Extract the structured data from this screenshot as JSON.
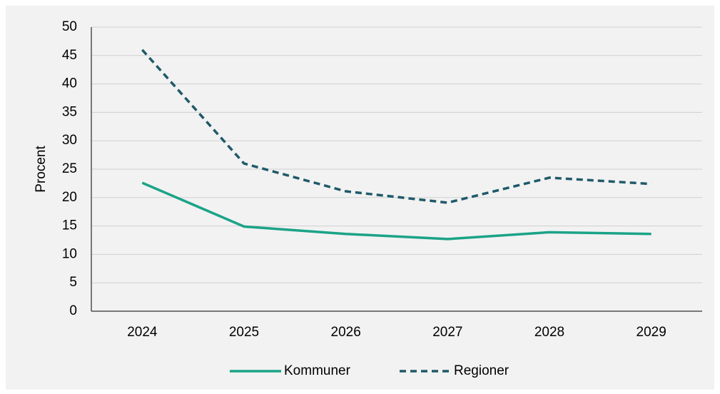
{
  "chart_data": {
    "type": "line",
    "categories": [
      "2024",
      "2025",
      "2026",
      "2027",
      "2028",
      "2029"
    ],
    "series": [
      {
        "name": "Kommuner",
        "color": "#1ba387",
        "dashed": false,
        "values": [
          22.6,
          14.9,
          13.6,
          12.7,
          13.9,
          13.6
        ]
      },
      {
        "name": "Regioner",
        "color": "#1f5a69",
        "dashed": true,
        "values": [
          46,
          26,
          21.1,
          19.1,
          23.5,
          22.4
        ]
      }
    ],
    "ylabel": "Procent",
    "ylim": [
      0,
      50
    ],
    "yticks": [
      0,
      5,
      10,
      15,
      20,
      25,
      30,
      35,
      40,
      45,
      50
    ],
    "grid": true,
    "legend": "bottom"
  }
}
